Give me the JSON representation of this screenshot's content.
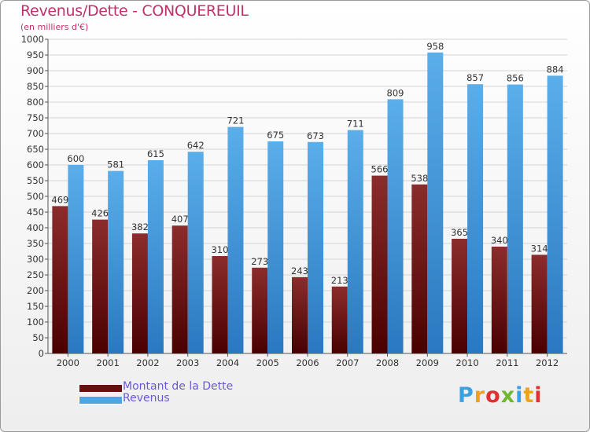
{
  "chart_data": {
    "type": "bar",
    "title": "Revenus/Dette - CONQUEREUIL",
    "subtitle": "(en milliers d'€)",
    "categories": [
      "2000",
      "2001",
      "2002",
      "2003",
      "2004",
      "2005",
      "2006",
      "2007",
      "2008",
      "2009",
      "2010",
      "2011",
      "2012"
    ],
    "series": [
      {
        "name": "Montant de la Dette",
        "color": "#7a1c1c",
        "values": [
          469,
          426,
          382,
          407,
          310,
          273,
          243,
          213,
          566,
          538,
          365,
          340,
          314
        ]
      },
      {
        "name": "Revenus",
        "color": "#4fa4e4",
        "values": [
          600,
          581,
          615,
          642,
          721,
          675,
          673,
          711,
          809,
          958,
          857,
          856,
          884
        ]
      }
    ],
    "ylim": [
      0,
      1000
    ],
    "ytick_step": 50,
    "grid": true,
    "legend_position": "bottom-left",
    "xlabel": "",
    "ylabel": ""
  },
  "logo": {
    "text": "Proxiti",
    "colors": [
      "#3ba0e0",
      "#f0a020",
      "#e03030",
      "#70b830",
      "#3ba0e0",
      "#f0a020",
      "#e03030"
    ]
  }
}
